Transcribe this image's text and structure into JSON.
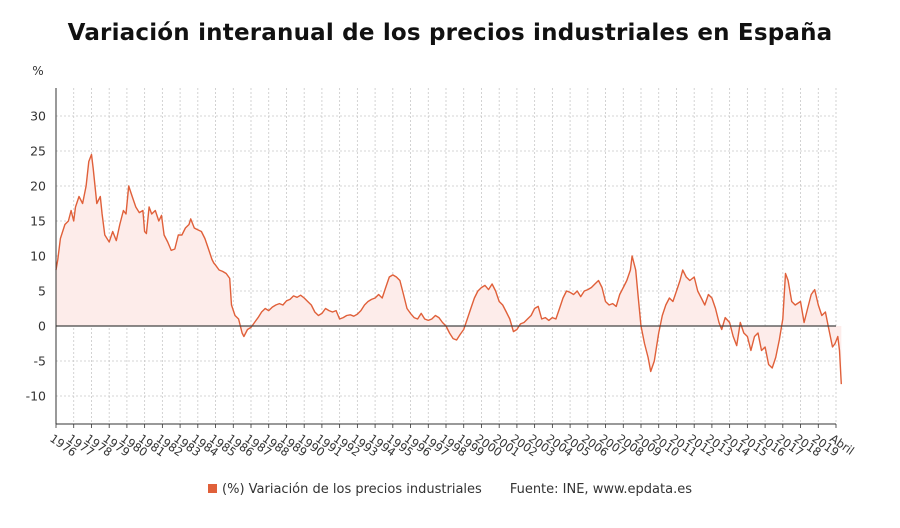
{
  "chart_data": {
    "type": "area",
    "title": "Variación interanual de los precios industriales en España",
    "ylabel": "%",
    "xlabel": "",
    "ylim": [
      -14,
      34
    ],
    "yticks": [
      -10,
      -5,
      0,
      5,
      10,
      15,
      20,
      25,
      30
    ],
    "x_tick_labels": [
      "1976",
      "1977",
      "1978",
      "1979",
      "1980",
      "1981",
      "1982",
      "1983",
      "1984",
      "1985",
      "1986",
      "1987",
      "1988",
      "1989",
      "1990",
      "1991",
      "1992",
      "1993",
      "1994",
      "1995",
      "1996",
      "1997",
      "1998",
      "1999",
      "2000",
      "2001",
      "2002",
      "2003",
      "2004",
      "2005",
      "2006",
      "2007",
      "2008",
      "2009",
      "2010",
      "2011",
      "2012",
      "2013",
      "2014",
      "2015",
      "2016",
      "2017",
      "2018",
      "2019",
      "Abril"
    ],
    "grid": true,
    "legend_position": "bottom-center",
    "colors": {
      "line": "#e0603a",
      "fill": "#fdecea",
      "zero_line": "#444444",
      "grid": "#c8c8c8"
    },
    "series": [
      {
        "name": "(%) Variación de los precios industriales",
        "points": [
          [
            1976.0,
            8.0
          ],
          [
            1976.1,
            9.5
          ],
          [
            1976.25,
            12.5
          ],
          [
            1976.5,
            14.5
          ],
          [
            1976.7,
            15.0
          ],
          [
            1976.85,
            16.5
          ],
          [
            1977.0,
            15.0
          ],
          [
            1977.1,
            17.0
          ],
          [
            1977.3,
            18.5
          ],
          [
            1977.5,
            17.5
          ],
          [
            1977.7,
            20.0
          ],
          [
            1977.85,
            23.5
          ],
          [
            1978.0,
            24.5
          ],
          [
            1978.1,
            22.5
          ],
          [
            1978.3,
            17.5
          ],
          [
            1978.5,
            18.5
          ],
          [
            1978.6,
            16.0
          ],
          [
            1978.75,
            13.0
          ],
          [
            1979.0,
            12.0
          ],
          [
            1979.2,
            13.5
          ],
          [
            1979.4,
            12.2
          ],
          [
            1979.6,
            14.5
          ],
          [
            1979.8,
            16.5
          ],
          [
            1979.95,
            16.0
          ],
          [
            1980.1,
            20.0
          ],
          [
            1980.3,
            18.5
          ],
          [
            1980.5,
            17.0
          ],
          [
            1980.7,
            16.2
          ],
          [
            1980.9,
            16.5
          ],
          [
            1981.0,
            13.5
          ],
          [
            1981.1,
            13.2
          ],
          [
            1981.25,
            17.0
          ],
          [
            1981.4,
            16.0
          ],
          [
            1981.6,
            16.5
          ],
          [
            1981.8,
            15.0
          ],
          [
            1981.95,
            15.8
          ],
          [
            1982.1,
            13.0
          ],
          [
            1982.3,
            12.0
          ],
          [
            1982.5,
            10.8
          ],
          [
            1982.7,
            11.0
          ],
          [
            1982.9,
            13.0
          ],
          [
            1983.1,
            13.0
          ],
          [
            1983.3,
            14.0
          ],
          [
            1983.5,
            14.5
          ],
          [
            1983.6,
            15.3
          ],
          [
            1983.8,
            14.0
          ],
          [
            1983.95,
            13.8
          ],
          [
            1984.2,
            13.5
          ],
          [
            1984.4,
            12.5
          ],
          [
            1984.6,
            11.0
          ],
          [
            1984.8,
            9.5
          ],
          [
            1984.9,
            9.0
          ],
          [
            1985.0,
            8.7
          ],
          [
            1985.2,
            8.0
          ],
          [
            1985.4,
            7.8
          ],
          [
            1985.6,
            7.5
          ],
          [
            1985.8,
            6.8
          ],
          [
            1985.9,
            3.0
          ],
          [
            1986.1,
            1.5
          ],
          [
            1986.3,
            1.0
          ],
          [
            1986.5,
            -1.0
          ],
          [
            1986.6,
            -1.5
          ],
          [
            1986.8,
            -0.5
          ],
          [
            1987.0,
            -0.2
          ],
          [
            1987.2,
            0.5
          ],
          [
            1987.4,
            1.2
          ],
          [
            1987.6,
            2.0
          ],
          [
            1987.8,
            2.5
          ],
          [
            1988.0,
            2.2
          ],
          [
            1988.2,
            2.7
          ],
          [
            1988.4,
            3.0
          ],
          [
            1988.6,
            3.2
          ],
          [
            1988.8,
            3.0
          ],
          [
            1989.0,
            3.6
          ],
          [
            1989.2,
            3.8
          ],
          [
            1989.4,
            4.3
          ],
          [
            1989.6,
            4.1
          ],
          [
            1989.8,
            4.4
          ],
          [
            1990.0,
            4.0
          ],
          [
            1990.2,
            3.5
          ],
          [
            1990.4,
            3.0
          ],
          [
            1990.6,
            2.0
          ],
          [
            1990.8,
            1.5
          ],
          [
            1991.0,
            1.8
          ],
          [
            1991.2,
            2.5
          ],
          [
            1991.4,
            2.2
          ],
          [
            1991.6,
            2.0
          ],
          [
            1991.8,
            2.2
          ],
          [
            1992.0,
            1.0
          ],
          [
            1992.2,
            1.2
          ],
          [
            1992.4,
            1.5
          ],
          [
            1992.6,
            1.6
          ],
          [
            1992.8,
            1.4
          ],
          [
            1993.0,
            1.7
          ],
          [
            1993.2,
            2.2
          ],
          [
            1993.4,
            3.0
          ],
          [
            1993.6,
            3.5
          ],
          [
            1993.8,
            3.8
          ],
          [
            1994.0,
            4.0
          ],
          [
            1994.2,
            4.5
          ],
          [
            1994.4,
            4.0
          ],
          [
            1994.6,
            5.5
          ],
          [
            1994.8,
            7.0
          ],
          [
            1995.0,
            7.3
          ],
          [
            1995.2,
            7.0
          ],
          [
            1995.4,
            6.5
          ],
          [
            1995.6,
            4.5
          ],
          [
            1995.8,
            2.5
          ],
          [
            1996.0,
            1.8
          ],
          [
            1996.2,
            1.2
          ],
          [
            1996.4,
            1.0
          ],
          [
            1996.6,
            1.8
          ],
          [
            1996.8,
            1.0
          ],
          [
            1997.0,
            0.8
          ],
          [
            1997.2,
            1.0
          ],
          [
            1997.4,
            1.5
          ],
          [
            1997.6,
            1.2
          ],
          [
            1997.8,
            0.5
          ],
          [
            1998.0,
            0.0
          ],
          [
            1998.2,
            -1.0
          ],
          [
            1998.4,
            -1.8
          ],
          [
            1998.6,
            -2.0
          ],
          [
            1998.8,
            -1.2
          ],
          [
            1999.0,
            -0.5
          ],
          [
            1999.2,
            1.0
          ],
          [
            1999.4,
            2.5
          ],
          [
            1999.6,
            4.0
          ],
          [
            1999.8,
            5.0
          ],
          [
            2000.0,
            5.5
          ],
          [
            2000.2,
            5.8
          ],
          [
            2000.4,
            5.2
          ],
          [
            2000.6,
            6.0
          ],
          [
            2000.8,
            5.0
          ],
          [
            2001.0,
            3.5
          ],
          [
            2001.2,
            3.0
          ],
          [
            2001.4,
            2.0
          ],
          [
            2001.6,
            1.0
          ],
          [
            2001.8,
            -0.8
          ],
          [
            2002.0,
            -0.5
          ],
          [
            2002.2,
            0.3
          ],
          [
            2002.4,
            0.5
          ],
          [
            2002.6,
            1.0
          ],
          [
            2002.8,
            1.5
          ],
          [
            2003.0,
            2.5
          ],
          [
            2003.2,
            2.8
          ],
          [
            2003.4,
            1.0
          ],
          [
            2003.6,
            1.2
          ],
          [
            2003.8,
            0.8
          ],
          [
            2004.0,
            1.2
          ],
          [
            2004.2,
            1.0
          ],
          [
            2004.4,
            2.5
          ],
          [
            2004.6,
            4.0
          ],
          [
            2004.8,
            5.0
          ],
          [
            2005.0,
            4.8
          ],
          [
            2005.2,
            4.5
          ],
          [
            2005.4,
            5.0
          ],
          [
            2005.6,
            4.2
          ],
          [
            2005.8,
            5.0
          ],
          [
            2006.0,
            5.2
          ],
          [
            2006.2,
            5.5
          ],
          [
            2006.4,
            6.0
          ],
          [
            2006.6,
            6.5
          ],
          [
            2006.8,
            5.5
          ],
          [
            2007.0,
            3.5
          ],
          [
            2007.2,
            3.0
          ],
          [
            2007.4,
            3.2
          ],
          [
            2007.6,
            2.8
          ],
          [
            2007.8,
            4.5
          ],
          [
            2008.0,
            5.5
          ],
          [
            2008.2,
            6.5
          ],
          [
            2008.4,
            8.0
          ],
          [
            2008.5,
            10.0
          ],
          [
            2008.7,
            8.0
          ],
          [
            2008.85,
            4.0
          ],
          [
            2009.0,
            0.0
          ],
          [
            2009.2,
            -2.5
          ],
          [
            2009.4,
            -4.5
          ],
          [
            2009.55,
            -6.5
          ],
          [
            2009.75,
            -5.0
          ],
          [
            2010.0,
            -1.0
          ],
          [
            2010.2,
            1.5
          ],
          [
            2010.4,
            3.0
          ],
          [
            2010.6,
            4.0
          ],
          [
            2010.8,
            3.5
          ],
          [
            2011.0,
            5.0
          ],
          [
            2011.2,
            6.5
          ],
          [
            2011.35,
            8.0
          ],
          [
            2011.55,
            7.0
          ],
          [
            2011.75,
            6.5
          ],
          [
            2012.0,
            7.0
          ],
          [
            2012.2,
            5.0
          ],
          [
            2012.4,
            4.0
          ],
          [
            2012.6,
            3.0
          ],
          [
            2012.8,
            4.5
          ],
          [
            2013.0,
            4.0
          ],
          [
            2013.2,
            2.5
          ],
          [
            2013.4,
            0.5
          ],
          [
            2013.55,
            -0.5
          ],
          [
            2013.75,
            1.2
          ],
          [
            2014.0,
            0.5
          ],
          [
            2014.2,
            -1.5
          ],
          [
            2014.4,
            -2.8
          ],
          [
            2014.6,
            0.5
          ],
          [
            2014.8,
            -1.0
          ],
          [
            2015.0,
            -1.5
          ],
          [
            2015.2,
            -3.5
          ],
          [
            2015.4,
            -1.5
          ],
          [
            2015.6,
            -1.0
          ],
          [
            2015.8,
            -3.5
          ],
          [
            2016.0,
            -3.0
          ],
          [
            2016.2,
            -5.5
          ],
          [
            2016.4,
            -6.0
          ],
          [
            2016.6,
            -4.5
          ],
          [
            2016.8,
            -2.0
          ],
          [
            2017.0,
            1.0
          ],
          [
            2017.15,
            7.5
          ],
          [
            2017.3,
            6.5
          ],
          [
            2017.5,
            3.5
          ],
          [
            2017.7,
            3.0
          ],
          [
            2018.0,
            3.5
          ],
          [
            2018.2,
            0.5
          ],
          [
            2018.4,
            2.5
          ],
          [
            2018.6,
            4.5
          ],
          [
            2018.8,
            5.2
          ],
          [
            2019.0,
            3.0
          ],
          [
            2019.2,
            1.5
          ],
          [
            2019.4,
            2.0
          ],
          [
            2019.6,
            -0.5
          ],
          [
            2019.8,
            -3.0
          ],
          [
            2019.95,
            -2.5
          ],
          [
            2020.1,
            -1.5
          ],
          [
            2020.2,
            -3.5
          ],
          [
            2020.3,
            -8.3
          ]
        ]
      }
    ]
  },
  "legend": {
    "series_label": "(%) Variación de los precios industriales",
    "source": "Fuente: INE, www.epdata.es"
  }
}
